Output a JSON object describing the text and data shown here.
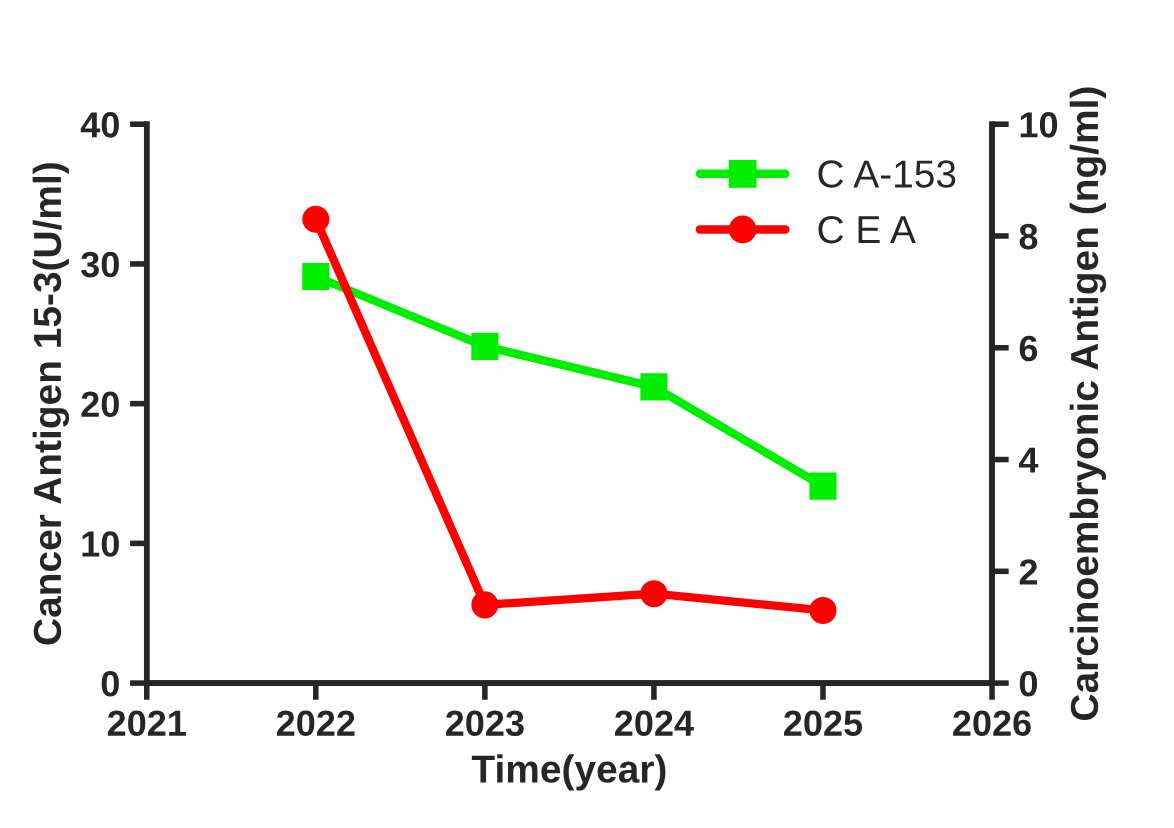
{
  "chart_data": {
    "type": "line",
    "xlabel": "Time(year)",
    "ylabel": "Cancer Antigen 15-3(U/ml)",
    "y2label": "Carcinoembryonic Antigen (ng/ml)",
    "x": [
      2022,
      2023,
      2024,
      2025
    ],
    "series": [
      {
        "name": "C A-153",
        "color": "#00ee00",
        "values": [
          29.1,
          24.1,
          21.2,
          14.1
        ],
        "marker": "square"
      },
      {
        "name": "C E A",
        "color": "#ff0000",
        "values": [
          8.3,
          1.4,
          1.6,
          1.3
        ],
        "marker": "circle",
        "axis": "y2"
      }
    ],
    "xlim": [
      2021,
      2026
    ],
    "xticks": [
      2021,
      2022,
      2023,
      2024,
      2025,
      2026
    ],
    "ylim": [
      0,
      40
    ],
    "yticks": [
      0,
      10,
      20,
      30,
      40
    ],
    "y2lim": [
      0,
      10
    ],
    "y2ticks": [
      0,
      2,
      4,
      6,
      8,
      10
    ],
    "grid": false,
    "legend": "top right",
    "line_style": "solid"
  }
}
